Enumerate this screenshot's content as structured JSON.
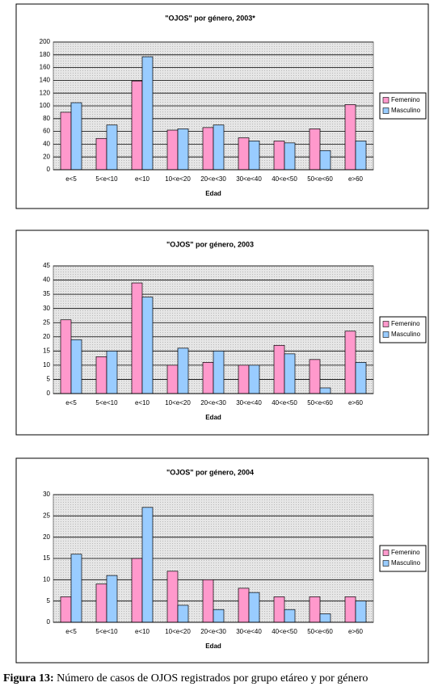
{
  "chart_data": [
    {
      "type": "bar",
      "title": "\"OJOS\" por género, 2003*",
      "x_label": "Edad",
      "categories": [
        "e<5",
        "5<e<10",
        "e<10",
        "10<e<20",
        "20<e<30",
        "30<e<40",
        "40<e<50",
        "50<e<60",
        "e>60"
      ],
      "series": [
        {
          "name": "Femenino",
          "color": "#ff99cc",
          "values": [
            90,
            49,
            139,
            62,
            66,
            50,
            45,
            64,
            102
          ]
        },
        {
          "name": "Masculino",
          "color": "#99ccff",
          "values": [
            105,
            70,
            177,
            64,
            70,
            45,
            42,
            30,
            45
          ]
        }
      ],
      "ylim": [
        0,
        200
      ],
      "yticks": [
        0,
        20,
        40,
        60,
        80,
        100,
        120,
        140,
        160,
        180,
        200
      ],
      "grid": true,
      "legend": "right"
    },
    {
      "type": "bar",
      "title": "\"OJOS\" por género, 2003",
      "x_label": "Edad",
      "categories": [
        "e<5",
        "5<e<10",
        "e<10",
        "10<e<20",
        "20<e<30",
        "30<e<40",
        "40<e<50",
        "50<e<60",
        "e>60"
      ],
      "series": [
        {
          "name": "Femenino",
          "color": "#ff99cc",
          "values": [
            26,
            13,
            39,
            10,
            11,
            10,
            17,
            12,
            22
          ]
        },
        {
          "name": "Masculino",
          "color": "#99ccff",
          "values": [
            19,
            15,
            34,
            16,
            15,
            10,
            14,
            2,
            11
          ]
        }
      ],
      "ylim": [
        0,
        45
      ],
      "yticks": [
        0,
        5,
        10,
        15,
        20,
        25,
        30,
        35,
        40,
        45
      ],
      "grid": true,
      "legend": "right"
    },
    {
      "type": "bar",
      "title": "\"OJOS\" por género, 2004",
      "x_label": "Edad",
      "categories": [
        "e<5",
        "5<e<10",
        "e<10",
        "10<e<20",
        "20<e<30",
        "30<e<40",
        "40<e<50",
        "50<e<60",
        "e>60"
      ],
      "series": [
        {
          "name": "Femenino",
          "color": "#ff99cc",
          "values": [
            6,
            9,
            15,
            12,
            10,
            8,
            6,
            6,
            6
          ]
        },
        {
          "name": "Masculino",
          "color": "#99ccff",
          "values": [
            16,
            11,
            27,
            4,
            3,
            7,
            3,
            2,
            5
          ]
        }
      ],
      "ylim": [
        0,
        30
      ],
      "yticks": [
        0,
        5,
        10,
        15,
        20,
        25,
        30
      ],
      "grid": true,
      "legend": "right"
    }
  ],
  "caption": {
    "label": "Figura 13:",
    "text": "Número de casos de OJOS registrados por grupo etáreo y por género"
  }
}
